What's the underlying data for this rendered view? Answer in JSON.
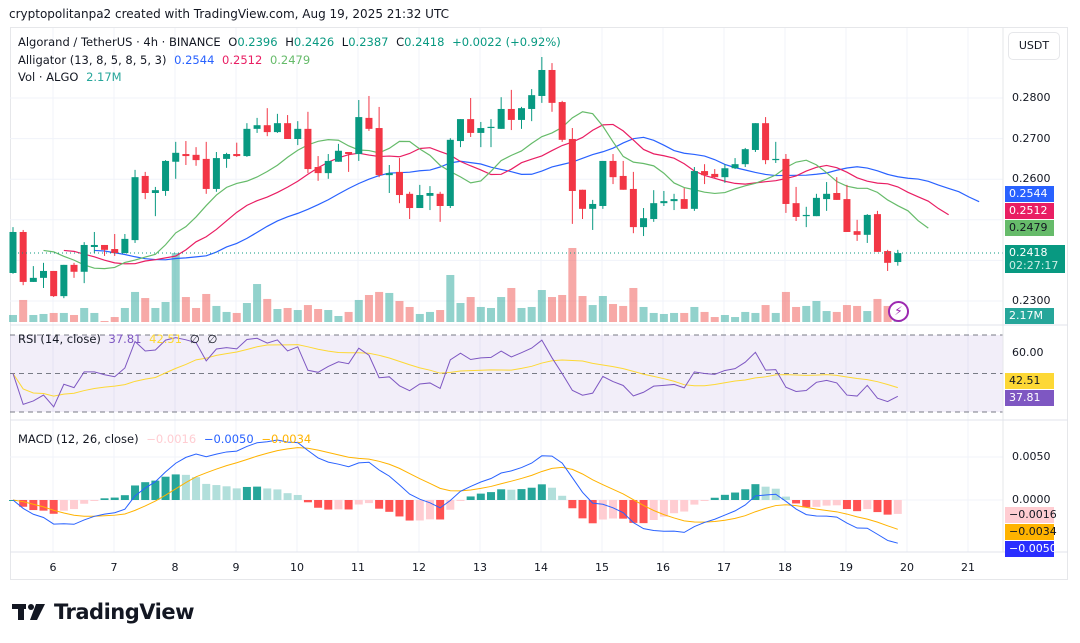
{
  "credit": "cryptopolitanpa2 created with TradingView.com, Aug 19, 2025 21:32 UTC",
  "symbol": {
    "title": "Algorand / TetherUS · 4h · BINANCE",
    "o_label": "O",
    "o": "0.2396",
    "h_label": "H",
    "h": "0.2426",
    "l_label": "L",
    "l": "0.2387",
    "c_label": "C",
    "c": "0.2418",
    "change": "+0.0022 (+0.92%)"
  },
  "alligator": {
    "label": "Alligator (13, 8, 5, 8, 5, 3)",
    "jaw": "0.2544",
    "teeth": "0.2512",
    "lips": "0.2479",
    "jaw_period": 13,
    "jaw_shift": 8,
    "teeth_period": 8,
    "teeth_shift": 5,
    "lips_period": 5,
    "lips_shift": 3
  },
  "volume": {
    "label": "Vol · ALGO",
    "value": "2.17M"
  },
  "rsi": {
    "label": "RSI (14, close)",
    "value": "37.81",
    "ma": "42.51",
    "extra1": "∅",
    "extra2": "∅",
    "axis_label": "60.00",
    "period": 14
  },
  "macd": {
    "label": "MACD (12, 26, close)",
    "hist": "−0.0016",
    "macd": "−0.0050",
    "signal": "−0.0034",
    "axis_labels": [
      "0.0050",
      "0.0000"
    ]
  },
  "currency_button": "USDT",
  "price_axis_labels": [
    "0.2800",
    "0.2700",
    "0.2600",
    "0.2300"
  ],
  "last_price": {
    "value": "0.2418",
    "countdown": "02:27:17"
  },
  "x_axis_labels": [
    "6",
    "7",
    "8",
    "9",
    "10",
    "11",
    "12",
    "13",
    "14",
    "15",
    "16",
    "17",
    "18",
    "19",
    "20",
    "21"
  ],
  "logo": "TradingView",
  "colors": {
    "up": "#089981",
    "down": "#f23645",
    "jaw": "#2962ff",
    "teeth": "#e91e63",
    "lips": "#66bb6a",
    "rsi": "#7e57c2",
    "rsi_ma": "#fdd835",
    "macd": "#2962ff",
    "signal": "#ffb300"
  },
  "chart_data": {
    "type": "candlestick",
    "x_unit": "4h candles, Aug 5 – Aug 19 2025",
    "ohlc": [
      [
        0.2369,
        0.2482,
        0.2367,
        0.247
      ],
      [
        0.247,
        0.2475,
        0.2339,
        0.2347
      ],
      [
        0.2347,
        0.2386,
        0.2347,
        0.2357
      ],
      [
        0.2357,
        0.2394,
        0.2332,
        0.2374
      ],
      [
        0.2374,
        0.2374,
        0.231,
        0.2312
      ],
      [
        0.2312,
        0.2389,
        0.2307,
        0.2389
      ],
      [
        0.2389,
        0.2394,
        0.2357,
        0.2372
      ],
      [
        0.2372,
        0.2445,
        0.2344,
        0.2438
      ],
      [
        0.2433,
        0.247,
        0.2418,
        0.2438
      ],
      [
        0.2438,
        0.2438,
        0.2411,
        0.2426
      ],
      [
        0.2428,
        0.2465,
        0.2411,
        0.2418
      ],
      [
        0.2418,
        0.2465,
        0.2418,
        0.2453
      ],
      [
        0.245,
        0.2623,
        0.2443,
        0.2605
      ],
      [
        0.2608,
        0.2618,
        0.2551,
        0.2566
      ],
      [
        0.2566,
        0.2581,
        0.2509,
        0.2573
      ],
      [
        0.2571,
        0.2647,
        0.2559,
        0.2645
      ],
      [
        0.2643,
        0.2692,
        0.2601,
        0.2665
      ],
      [
        0.2662,
        0.2694,
        0.2635,
        0.2657
      ],
      [
        0.266,
        0.2679,
        0.2633,
        0.2647
      ],
      [
        0.265,
        0.2692,
        0.2564,
        0.2576
      ],
      [
        0.2576,
        0.2667,
        0.2569,
        0.2652
      ],
      [
        0.265,
        0.2665,
        0.2628,
        0.2662
      ],
      [
        0.2662,
        0.269,
        0.2655,
        0.2657
      ],
      [
        0.2657,
        0.2738,
        0.2655,
        0.2724
      ],
      [
        0.2724,
        0.2751,
        0.2714,
        0.2733
      ],
      [
        0.2733,
        0.2775,
        0.2706,
        0.2716
      ],
      [
        0.2716,
        0.2761,
        0.2714,
        0.2738
      ],
      [
        0.2738,
        0.2758,
        0.2699,
        0.2699
      ],
      [
        0.2699,
        0.2743,
        0.2684,
        0.2724
      ],
      [
        0.2724,
        0.2766,
        0.2615,
        0.2625
      ],
      [
        0.263,
        0.2657,
        0.2596,
        0.2615
      ],
      [
        0.2615,
        0.2662,
        0.2601,
        0.2645
      ],
      [
        0.2643,
        0.2687,
        0.2643,
        0.267
      ],
      [
        0.2667,
        0.2667,
        0.2618,
        0.2662
      ],
      [
        0.2662,
        0.2795,
        0.2645,
        0.2753
      ],
      [
        0.2751,
        0.2805,
        0.2719,
        0.2724
      ],
      [
        0.2726,
        0.2778,
        0.2605,
        0.261
      ],
      [
        0.261,
        0.2635,
        0.2566,
        0.2615
      ],
      [
        0.2618,
        0.2652,
        0.2541,
        0.2561
      ],
      [
        0.2564,
        0.2569,
        0.2502,
        0.2529
      ],
      [
        0.2529,
        0.2586,
        0.2529,
        0.2561
      ],
      [
        0.2559,
        0.2583,
        0.2524,
        0.2566
      ],
      [
        0.2564,
        0.2569,
        0.2495,
        0.2534
      ],
      [
        0.2534,
        0.2701,
        0.2529,
        0.2697
      ],
      [
        0.2694,
        0.2748,
        0.2679,
        0.2748
      ],
      [
        0.2748,
        0.28,
        0.2704,
        0.2714
      ],
      [
        0.2714,
        0.2741,
        0.2679,
        0.2726
      ],
      [
        0.2726,
        0.2748,
        0.2679,
        0.2729
      ],
      [
        0.2724,
        0.2802,
        0.2724,
        0.2773
      ],
      [
        0.2773,
        0.282,
        0.2721,
        0.2746
      ],
      [
        0.2746,
        0.2778,
        0.2724,
        0.2775
      ],
      [
        0.2773,
        0.2822,
        0.2743,
        0.2807
      ],
      [
        0.2805,
        0.2901,
        0.2788,
        0.2869
      ],
      [
        0.2869,
        0.2886,
        0.2766,
        0.2788
      ],
      [
        0.279,
        0.2793,
        0.2692,
        0.2697
      ],
      [
        0.2699,
        0.2726,
        0.249,
        0.2571
      ],
      [
        0.2574,
        0.2574,
        0.2502,
        0.2527
      ],
      [
        0.2527,
        0.2549,
        0.2475,
        0.2539
      ],
      [
        0.2534,
        0.2645,
        0.2527,
        0.2645
      ],
      [
        0.2645,
        0.2662,
        0.2588,
        0.2605
      ],
      [
        0.2608,
        0.2645,
        0.2574,
        0.2574
      ],
      [
        0.2576,
        0.2618,
        0.2467,
        0.2482
      ],
      [
        0.2482,
        0.2529,
        0.246,
        0.2504
      ],
      [
        0.2502,
        0.2573,
        0.2495,
        0.2541
      ],
      [
        0.2541,
        0.2571,
        0.2534,
        0.2546
      ],
      [
        0.2546,
        0.2564,
        0.2524,
        0.2551
      ],
      [
        0.2551,
        0.2578,
        0.2527,
        0.2527
      ],
      [
        0.2527,
        0.263,
        0.2522,
        0.262
      ],
      [
        0.262,
        0.2637,
        0.2588,
        0.261
      ],
      [
        0.2613,
        0.2625,
        0.2603,
        0.2605
      ],
      [
        0.2605,
        0.2637,
        0.2591,
        0.2627
      ],
      [
        0.2627,
        0.2652,
        0.2625,
        0.2637
      ],
      [
        0.2637,
        0.2677,
        0.263,
        0.2674
      ],
      [
        0.2672,
        0.2738,
        0.2667,
        0.2738
      ],
      [
        0.2738,
        0.2753,
        0.2637,
        0.2647
      ],
      [
        0.2647,
        0.2692,
        0.264,
        0.265
      ],
      [
        0.265,
        0.2662,
        0.2517,
        0.2539
      ],
      [
        0.2541,
        0.2581,
        0.2497,
        0.2507
      ],
      [
        0.2509,
        0.2532,
        0.2482,
        0.2512
      ],
      [
        0.2509,
        0.2564,
        0.2509,
        0.2554
      ],
      [
        0.2551,
        0.2593,
        0.2522,
        0.2564
      ],
      [
        0.2566,
        0.2605,
        0.2549,
        0.2549
      ],
      [
        0.2551,
        0.2586,
        0.247,
        0.247
      ],
      [
        0.2472,
        0.25,
        0.2448,
        0.2463
      ],
      [
        0.2463,
        0.2514,
        0.2443,
        0.2512
      ],
      [
        0.2514,
        0.2522,
        0.2421,
        0.2421
      ],
      [
        0.2423,
        0.2426,
        0.2374,
        0.2394
      ],
      [
        0.2396,
        0.2426,
        0.2387,
        0.2418
      ]
    ],
    "volume_m": [
      7.6,
      23.9,
      7.6,
      8.7,
      9.8,
      9.8,
      7.6,
      15.2,
      9.8,
      1.1,
      5.4,
      15.2,
      32.6,
      26.0,
      15.2,
      21.7,
      74.9,
      27.1,
      15.2,
      30.4,
      17.4,
      10.9,
      9.8,
      20.6,
      41.2,
      25.0,
      14.1,
      15.2,
      13.0,
      18.4,
      14.1,
      13.0,
      6.5,
      10.9,
      23.9,
      29.3,
      32.6,
      31.5,
      22.8,
      16.3,
      8.7,
      10.9,
      13.0,
      51.0,
      20.6,
      27.1,
      16.3,
      15.2,
      27.1,
      36.9,
      15.2,
      16.3,
      34.7,
      27.1,
      29.3,
      80.3,
      28.2,
      18.4,
      28.2,
      19.5,
      17.4,
      36.9,
      16.3,
      9.8,
      8.7,
      9.8,
      9.8,
      16.3,
      10.9,
      5.4,
      7.6,
      5.4,
      10.9,
      9.8,
      18.4,
      9.8,
      32.6,
      16.3,
      17.4,
      22.8,
      11.9,
      10.9,
      18.4,
      17.4,
      11.9,
      25.0,
      17.4,
      2.17
    ],
    "price_range": [
      0.23,
      0.29
    ],
    "rsi_levels": [
      70,
      50,
      30
    ],
    "grid": true
  }
}
